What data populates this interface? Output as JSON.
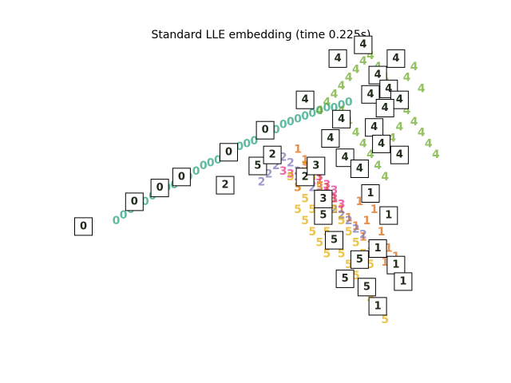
{
  "chart_data": {
    "type": "scatter",
    "title": "Standard LLE embedding (time 0.225s)",
    "xlabel": "",
    "ylabel": "",
    "xlim": [
      0,
      1
    ],
    "ylim": [
      0,
      1
    ],
    "axes_visible": false,
    "grid": false,
    "marker": "digit text",
    "series": [
      {
        "name": "0",
        "color": "#1b9e77",
        "points": [
          [
            0.1,
            0.4
          ],
          [
            0.12,
            0.42
          ],
          [
            0.14,
            0.44
          ],
          [
            0.16,
            0.46
          ],
          [
            0.18,
            0.47
          ],
          [
            0.2,
            0.49
          ],
          [
            0.22,
            0.5
          ],
          [
            0.24,
            0.52
          ],
          [
            0.26,
            0.53
          ],
          [
            0.28,
            0.55
          ],
          [
            0.3,
            0.56
          ],
          [
            0.32,
            0.58
          ],
          [
            0.34,
            0.6
          ],
          [
            0.36,
            0.61
          ],
          [
            0.38,
            0.62
          ],
          [
            0.4,
            0.64
          ],
          [
            0.42,
            0.65
          ],
          [
            0.44,
            0.67
          ],
          [
            0.46,
            0.68
          ],
          [
            0.48,
            0.69
          ],
          [
            0.5,
            0.71
          ],
          [
            0.52,
            0.72
          ],
          [
            0.54,
            0.73
          ],
          [
            0.56,
            0.75
          ],
          [
            0.58,
            0.76
          ],
          [
            0.6,
            0.77
          ],
          [
            0.62,
            0.78
          ],
          [
            0.64,
            0.79
          ],
          [
            0.66,
            0.8
          ],
          [
            0.68,
            0.81
          ],
          [
            0.7,
            0.81
          ],
          [
            0.72,
            0.82
          ],
          [
            0.74,
            0.83
          ]
        ]
      },
      {
        "name": "1",
        "color": "#d95f02",
        "points": [
          [
            0.6,
            0.66
          ],
          [
            0.62,
            0.62
          ],
          [
            0.64,
            0.58
          ],
          [
            0.66,
            0.55
          ],
          [
            0.68,
            0.52
          ],
          [
            0.7,
            0.48
          ],
          [
            0.72,
            0.44
          ],
          [
            0.74,
            0.41
          ],
          [
            0.76,
            0.38
          ],
          [
            0.78,
            0.34
          ],
          [
            0.8,
            0.31
          ],
          [
            0.82,
            0.28
          ],
          [
            0.84,
            0.25
          ],
          [
            0.86,
            0.22
          ],
          [
            0.88,
            0.19
          ],
          [
            0.9,
            0.16
          ],
          [
            0.83,
            0.36
          ],
          [
            0.85,
            0.3
          ],
          [
            0.87,
            0.27
          ],
          [
            0.79,
            0.4
          ],
          [
            0.81,
            0.44
          ],
          [
            0.77,
            0.47
          ]
        ]
      },
      {
        "name": "2",
        "color": "#7570b3",
        "points": [
          [
            0.5,
            0.54
          ],
          [
            0.52,
            0.57
          ],
          [
            0.54,
            0.6
          ],
          [
            0.56,
            0.63
          ],
          [
            0.58,
            0.61
          ],
          [
            0.6,
            0.58
          ],
          [
            0.62,
            0.55
          ],
          [
            0.64,
            0.52
          ],
          [
            0.66,
            0.5
          ],
          [
            0.68,
            0.47
          ],
          [
            0.7,
            0.44
          ],
          [
            0.72,
            0.42
          ],
          [
            0.74,
            0.4
          ],
          [
            0.76,
            0.37
          ],
          [
            0.78,
            0.35
          ]
        ]
      },
      {
        "name": "3",
        "color": "#e7298a",
        "points": [
          [
            0.56,
            0.58
          ],
          [
            0.58,
            0.57
          ],
          [
            0.6,
            0.56
          ],
          [
            0.62,
            0.55
          ],
          [
            0.64,
            0.54
          ],
          [
            0.66,
            0.52
          ],
          [
            0.68,
            0.5
          ],
          [
            0.7,
            0.48
          ],
          [
            0.72,
            0.46
          ],
          [
            0.62,
            0.6
          ],
          [
            0.64,
            0.58
          ],
          [
            0.66,
            0.56
          ],
          [
            0.68,
            0.53
          ],
          [
            0.7,
            0.51
          ],
          [
            0.6,
            0.52
          ]
        ]
      },
      {
        "name": "4",
        "color": "#66a61e",
        "points": [
          [
            0.66,
            0.8
          ],
          [
            0.68,
            0.83
          ],
          [
            0.7,
            0.86
          ],
          [
            0.72,
            0.89
          ],
          [
            0.74,
            0.92
          ],
          [
            0.76,
            0.95
          ],
          [
            0.78,
            0.98
          ],
          [
            0.8,
            1.0
          ],
          [
            0.82,
            0.96
          ],
          [
            0.84,
            0.92
          ],
          [
            0.86,
            0.88
          ],
          [
            0.88,
            0.84
          ],
          [
            0.9,
            0.8
          ],
          [
            0.92,
            0.76
          ],
          [
            0.94,
            0.72
          ],
          [
            0.96,
            0.68
          ],
          [
            0.98,
            0.64
          ],
          [
            0.74,
            0.76
          ],
          [
            0.76,
            0.72
          ],
          [
            0.78,
            0.68
          ],
          [
            0.8,
            0.64
          ],
          [
            0.82,
            0.6
          ],
          [
            0.84,
            0.56
          ],
          [
            0.72,
            0.8
          ],
          [
            0.86,
            0.7
          ],
          [
            0.88,
            0.74
          ],
          [
            0.9,
            0.92
          ],
          [
            0.92,
            0.96
          ],
          [
            0.94,
            0.88
          ]
        ]
      },
      {
        "name": "5",
        "color": "#e6ab02",
        "points": [
          [
            0.58,
            0.56
          ],
          [
            0.6,
            0.52
          ],
          [
            0.62,
            0.48
          ],
          [
            0.64,
            0.44
          ],
          [
            0.66,
            0.4
          ],
          [
            0.68,
            0.36
          ],
          [
            0.7,
            0.32
          ],
          [
            0.72,
            0.28
          ],
          [
            0.74,
            0.24
          ],
          [
            0.76,
            0.2
          ],
          [
            0.78,
            0.16
          ],
          [
            0.8,
            0.12
          ],
          [
            0.82,
            0.08
          ],
          [
            0.84,
            0.04
          ],
          [
            0.62,
            0.6
          ],
          [
            0.64,
            0.56
          ],
          [
            0.66,
            0.52
          ],
          [
            0.68,
            0.48
          ],
          [
            0.7,
            0.44
          ],
          [
            0.72,
            0.4
          ],
          [
            0.74,
            0.36
          ],
          [
            0.76,
            0.32
          ],
          [
            0.78,
            0.28
          ],
          [
            0.8,
            0.24
          ],
          [
            0.6,
            0.44
          ],
          [
            0.62,
            0.4
          ],
          [
            0.64,
            0.36
          ],
          [
            0.66,
            0.32
          ],
          [
            0.68,
            0.28
          ]
        ]
      }
    ],
    "thumbnails": [
      {
        "digit": "0",
        "x": 0.01,
        "y": 0.38
      },
      {
        "digit": "0",
        "x": 0.15,
        "y": 0.47
      },
      {
        "digit": "0",
        "x": 0.22,
        "y": 0.52
      },
      {
        "digit": "0",
        "x": 0.28,
        "y": 0.56
      },
      {
        "digit": "0",
        "x": 0.41,
        "y": 0.65
      },
      {
        "digit": "0",
        "x": 0.51,
        "y": 0.73
      },
      {
        "digit": "2",
        "x": 0.4,
        "y": 0.53
      },
      {
        "digit": "5",
        "x": 0.49,
        "y": 0.6
      },
      {
        "digit": "2",
        "x": 0.53,
        "y": 0.64
      },
      {
        "digit": "4",
        "x": 0.62,
        "y": 0.84
      },
      {
        "digit": "4",
        "x": 0.71,
        "y": 0.99
      },
      {
        "digit": "4",
        "x": 0.78,
        "y": 1.04
      },
      {
        "digit": "4",
        "x": 0.82,
        "y": 0.93
      },
      {
        "digit": "4",
        "x": 0.87,
        "y": 0.99
      },
      {
        "digit": "4",
        "x": 0.8,
        "y": 0.86
      },
      {
        "digit": "4",
        "x": 0.85,
        "y": 0.88
      },
      {
        "digit": "4",
        "x": 0.88,
        "y": 0.84
      },
      {
        "digit": "4",
        "x": 0.84,
        "y": 0.81
      },
      {
        "digit": "4",
        "x": 0.72,
        "y": 0.77
      },
      {
        "digit": "4",
        "x": 0.69,
        "y": 0.7
      },
      {
        "digit": "4",
        "x": 0.81,
        "y": 0.74
      },
      {
        "digit": "4",
        "x": 0.83,
        "y": 0.68
      },
      {
        "digit": "4",
        "x": 0.88,
        "y": 0.64
      },
      {
        "digit": "4",
        "x": 0.73,
        "y": 0.63
      },
      {
        "digit": "4",
        "x": 0.77,
        "y": 0.59
      },
      {
        "digit": "1",
        "x": 0.8,
        "y": 0.5
      },
      {
        "digit": "1",
        "x": 0.85,
        "y": 0.42
      },
      {
        "digit": "1",
        "x": 0.82,
        "y": 0.3
      },
      {
        "digit": "1",
        "x": 0.87,
        "y": 0.24
      },
      {
        "digit": "1",
        "x": 0.89,
        "y": 0.18
      },
      {
        "digit": "1",
        "x": 0.82,
        "y": 0.09
      },
      {
        "digit": "5",
        "x": 0.67,
        "y": 0.42
      },
      {
        "digit": "5",
        "x": 0.7,
        "y": 0.33
      },
      {
        "digit": "5",
        "x": 0.77,
        "y": 0.26
      },
      {
        "digit": "5",
        "x": 0.73,
        "y": 0.19
      },
      {
        "digit": "5",
        "x": 0.79,
        "y": 0.16
      },
      {
        "digit": "2",
        "x": 0.62,
        "y": 0.56
      },
      {
        "digit": "3",
        "x": 0.65,
        "y": 0.6
      },
      {
        "digit": "3",
        "x": 0.67,
        "y": 0.48
      }
    ]
  }
}
